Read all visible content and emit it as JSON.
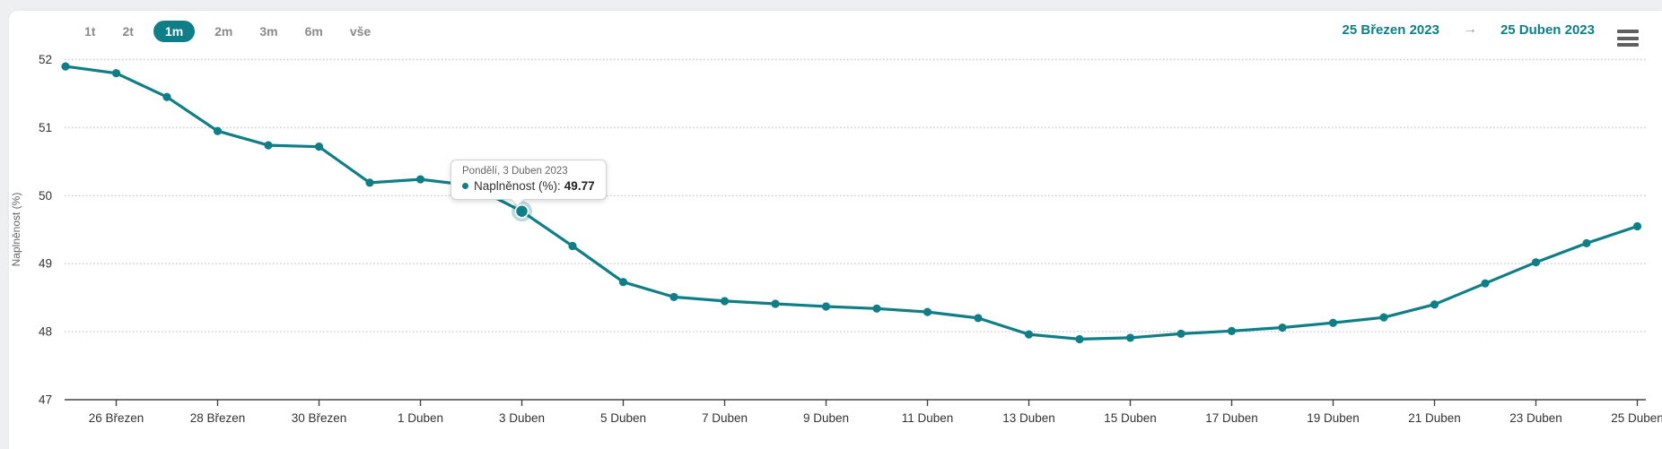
{
  "header": {
    "range_buttons": [
      {
        "label": "1t",
        "selected": false
      },
      {
        "label": "2t",
        "selected": false
      },
      {
        "label": "1m",
        "selected": true
      },
      {
        "label": "2m",
        "selected": false
      },
      {
        "label": "3m",
        "selected": false
      },
      {
        "label": "6m",
        "selected": false
      },
      {
        "label": "vše",
        "selected": false
      }
    ],
    "date_from": "25 Březen 2023",
    "arrow_glyph": "→",
    "date_to": "25 Duben 2023",
    "menu_icon": "hamburger-icon"
  },
  "tooltip": {
    "title": "Pondělí, 3 Duben 2023",
    "series_label": "Naplněnost (%):",
    "value": "49.77"
  },
  "colors": {
    "accent": "#0f7e87",
    "halo": "rgba(15,126,135,0.28)",
    "gridline": "#c9c9c9",
    "axis": "#444444",
    "tick_label": "#333333",
    "muted": "#666666"
  },
  "chart_data": {
    "type": "line",
    "title": "",
    "xlabel": "",
    "ylabel": "Naplněnost (%)",
    "ylim": [
      47,
      52
    ],
    "yticks": [
      47,
      48,
      49,
      50,
      51,
      52
    ],
    "grid": "dotted horizontal",
    "legend": "none",
    "series_name": "Naplněnost (%)",
    "categories": [
      "25 Březen",
      "26 Březen",
      "27 Březen",
      "28 Březen",
      "29 Březen",
      "30 Březen",
      "31 Březen",
      "1 Duben",
      "2 Duben",
      "3 Duben",
      "4 Duben",
      "5 Duben",
      "6 Duben",
      "7 Duben",
      "8 Duben",
      "9 Duben",
      "10 Duben",
      "11 Duben",
      "12 Duben",
      "13 Duben",
      "14 Duben",
      "15 Duben",
      "16 Duben",
      "17 Duben",
      "18 Duben",
      "19 Duben",
      "20 Duben",
      "21 Duben",
      "22 Duben",
      "23 Duben",
      "24 Duben",
      "25 Duben"
    ],
    "values": [
      51.9,
      51.8,
      51.45,
      50.95,
      50.74,
      50.72,
      50.19,
      50.24,
      50.15,
      49.77,
      49.26,
      48.73,
      48.51,
      48.45,
      48.41,
      48.37,
      48.34,
      48.29,
      48.2,
      47.96,
      47.89,
      47.91,
      47.97,
      48.01,
      48.06,
      48.13,
      48.21,
      48.4,
      48.71,
      49.02,
      49.3,
      49.55
    ],
    "xtick_indices": [
      1,
      3,
      5,
      7,
      9,
      11,
      13,
      15,
      17,
      19,
      21,
      23,
      25,
      27,
      29,
      31
    ],
    "xtick_labels": [
      "26 Březen",
      "28 Březen",
      "30 Březen",
      "1 Duben",
      "3 Duben",
      "5 Duben",
      "7 Duben",
      "9 Duben",
      "11 Duben",
      "13 Duben",
      "15 Duben",
      "17 Duben",
      "19 Duben",
      "21 Duben",
      "23 Duben",
      "25 Duben"
    ],
    "active_point_index": 9,
    "active_point_value": 49.77
  }
}
